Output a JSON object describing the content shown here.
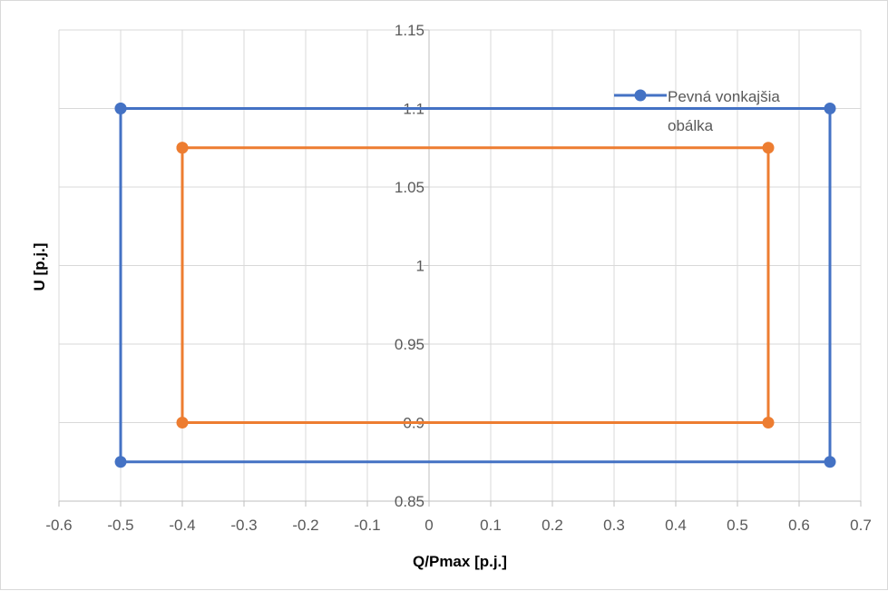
{
  "chart_data": {
    "type": "scatter",
    "xlabel": "Q/Pmax [p.j.]",
    "ylabel": "U [p.j.]",
    "xlim": [
      -0.6,
      0.7
    ],
    "ylim": [
      0.85,
      1.15
    ],
    "x_ticks": [
      -0.6,
      -0.5,
      -0.4,
      -0.3,
      -0.2,
      -0.1,
      0,
      0.1,
      0.2,
      0.3,
      0.4,
      0.5,
      0.6,
      0.7
    ],
    "x_tick_labels": [
      "-0.6",
      "-0.5",
      "-0.4",
      "-0.3",
      "-0.2",
      "-0.1",
      "0",
      "0.1",
      "0.2",
      "0.3",
      "0.4",
      "0.5",
      "0.6",
      "0.7"
    ],
    "y_ticks": [
      0.85,
      0.9,
      0.95,
      1.0,
      1.05,
      1.1,
      1.15
    ],
    "y_tick_labels": [
      "0.85",
      "0.9",
      "0.95",
      "1",
      "1.05",
      "1.1",
      "1.15"
    ],
    "grid": true,
    "legend_position": "top-right",
    "series": [
      {
        "name": "Pevná vonkajšia obálka",
        "color": "#4472c4",
        "x": [
          -0.5,
          0.65,
          0.65,
          -0.5,
          -0.5
        ],
        "y": [
          1.1,
          1.1,
          0.875,
          0.875,
          1.1
        ]
      },
      {
        "color": "#ed7d31",
        "x": [
          -0.4,
          0.55,
          0.55,
          -0.4,
          -0.4
        ],
        "y": [
          1.075,
          1.075,
          0.9,
          0.9,
          1.075
        ]
      }
    ],
    "legend": {
      "line1": "Pevná vonkajšia",
      "line2": "obálka"
    }
  }
}
